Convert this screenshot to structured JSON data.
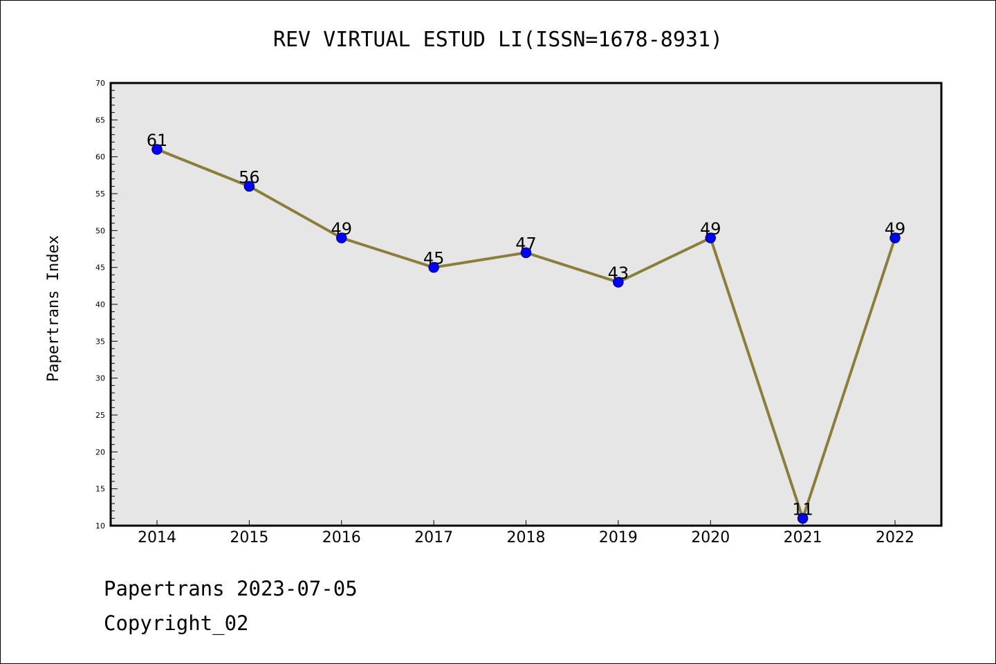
{
  "chart_data": {
    "type": "line",
    "title": "REV VIRTUAL ESTUD LI(ISSN=1678-8931)",
    "xlabel": "",
    "ylabel": "Papertrans Index",
    "categories": [
      "2014",
      "2015",
      "2016",
      "2017",
      "2018",
      "2019",
      "2020",
      "2021",
      "2022"
    ],
    "series": [
      {
        "values": [
          61,
          56,
          49,
          45,
          47,
          43,
          49,
          11,
          49
        ]
      }
    ],
    "data_labels": [
      "61",
      "56",
      "49",
      "45",
      "47",
      "43",
      "49",
      "11",
      "49"
    ],
    "ylim": [
      10,
      70
    ],
    "yticks": [
      "10",
      "15",
      "20",
      "25",
      "30",
      "35",
      "40",
      "45",
      "50",
      "55",
      "60",
      "65",
      "70"
    ],
    "grid": false,
    "legend": "none",
    "colors": {
      "plot_background": "#e6e6e6",
      "line": "#8b7d3a",
      "marker": "#0000ff",
      "marker_edge": "#00008b"
    }
  },
  "footer": {
    "date_line": "Papertrans 2023-07-05",
    "copyright_line": "Copyright_02"
  }
}
